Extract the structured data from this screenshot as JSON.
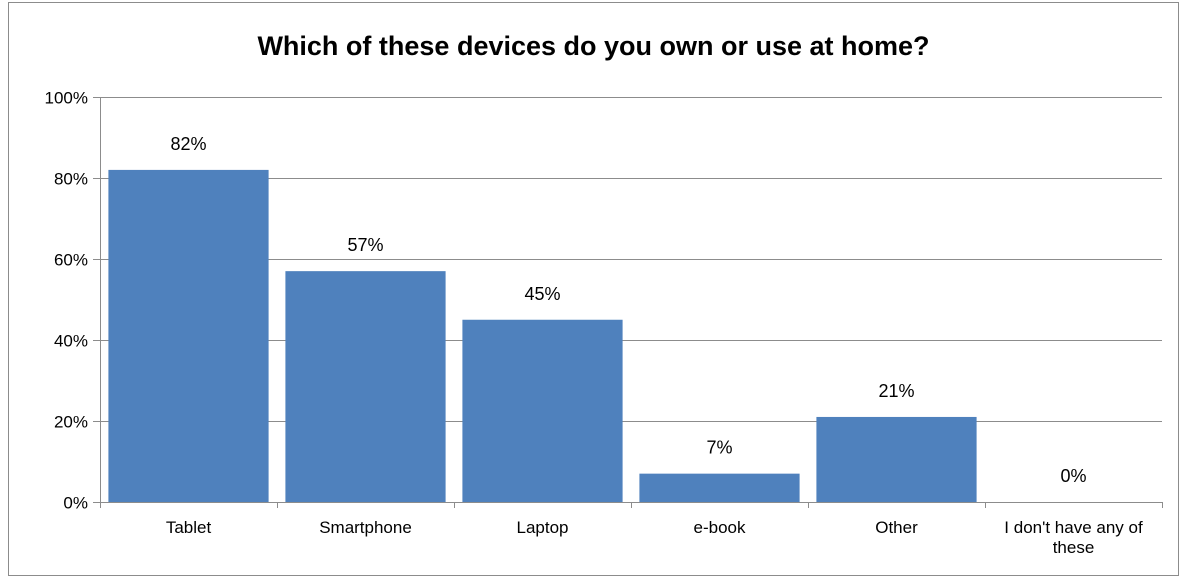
{
  "chart_data": {
    "type": "bar",
    "title": "Which of these devices do you own or use at home?",
    "xlabel": "",
    "ylabel": "",
    "categories": [
      [
        "Tablet"
      ],
      [
        "Smartphone"
      ],
      [
        "Laptop"
      ],
      [
        "e-book"
      ],
      [
        "Other"
      ],
      [
        "I don't have any of",
        "these"
      ]
    ],
    "values": [
      82,
      57,
      45,
      7,
      21,
      0
    ],
    "data_labels": [
      "82%",
      "57%",
      "45%",
      "7%",
      "21%",
      "0%"
    ],
    "ylim": [
      0,
      100
    ],
    "yticks": [
      0,
      20,
      40,
      60,
      80,
      100
    ],
    "ytick_labels": [
      "0%",
      "20%",
      "40%",
      "60%",
      "80%",
      "100%"
    ],
    "grid": true,
    "legend": "none",
    "bar_color": "#4f81bd",
    "grid_color": "#8c8c8c"
  }
}
